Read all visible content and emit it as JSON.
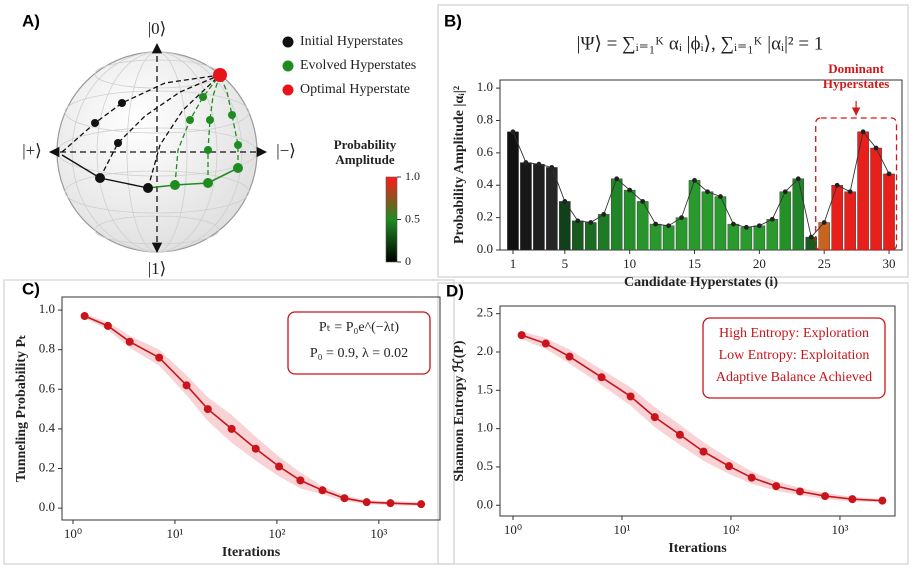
{
  "chart_data": [
    {
      "type": "bloch",
      "panel_label": "A)",
      "axis_labels": {
        "top": "|0⟩",
        "bottom": "|1⟩",
        "left": "|+⟩",
        "right": "|−⟩"
      },
      "series": [
        {
          "name": "Initial Hyperstates",
          "color": "#111111"
        },
        {
          "name": "Evolved Hyperstates",
          "color": "#1f8c22"
        },
        {
          "name": "Optimal Hyperstate",
          "color": "#e8141a"
        }
      ],
      "colorbar": {
        "label": "Probability Amplitude",
        "colors": [
          "#000000",
          "#1f8c22",
          "#ff1a1a"
        ],
        "lim": [
          0,
          1
        ],
        "ticks": [
          0,
          0.5,
          {
            "value": 1,
            "label": "1.0"
          }
        ]
      }
    },
    {
      "type": "bar",
      "panel_label": "B)",
      "equation": "|Ψ⟩ = ∑ᵢ₌₁ᴷ αᵢ |ϕᵢ⟩,     ∑ᵢ₌₁ᴷ |αᵢ|² = 1",
      "xlabel": "Candidate Hyperstates (i)",
      "ylabel": "Probability Amplitude |αᵢ|²",
      "x": [
        1,
        2,
        3,
        4,
        5,
        6,
        7,
        8,
        9,
        10,
        11,
        12,
        13,
        14,
        15,
        16,
        17,
        18,
        19,
        20,
        21,
        22,
        23,
        24,
        25,
        26,
        27,
        28,
        29,
        30
      ],
      "values": [
        0.73,
        0.54,
        0.53,
        0.51,
        0.3,
        0.18,
        0.17,
        0.22,
        0.44,
        0.37,
        0.3,
        0.16,
        0.15,
        0.2,
        0.43,
        0.36,
        0.33,
        0.16,
        0.14,
        0.15,
        0.19,
        0.36,
        0.44,
        0.08,
        0.17,
        0.4,
        0.36,
        0.73,
        0.63,
        0.47
      ],
      "colors": [
        "#111111",
        "#181818",
        "#1e1e1e",
        "#262626",
        "#12401a",
        "#185a1e",
        "#1c6b22",
        "#1f7a25",
        "#228428",
        "#258f2a",
        "#27952c",
        "#29992e",
        "#29992e",
        "#29992e",
        "#2a9a2e",
        "#2a9a2e",
        "#2a9a2e",
        "#2a9a2e",
        "#2a9a2e",
        "#2a9a2e",
        "#2a9a2e",
        "#269028",
        "#228428",
        "#1a5a1e",
        "#c8641e",
        "#e8201c",
        "#e8201c",
        "#e8201c",
        "#e8201c",
        "#e8201c"
      ],
      "highlight": [
        25,
        30
      ],
      "annotation": "Dominant Hyperstates",
      "annotation_color": "#d01818",
      "xlim": [
        0,
        31
      ],
      "ylim": [
        0,
        1.05
      ],
      "xticks": [
        1,
        5,
        10,
        15,
        20,
        25,
        30
      ],
      "yticks": [
        {
          "value": 0,
          "label": "0.0"
        },
        0.2,
        0.4,
        0.6,
        0.8,
        {
          "value": 1,
          "label": "1.0"
        }
      ]
    },
    {
      "type": "line",
      "panel_label": "C)",
      "xlabel": "Iterations",
      "ylabel": "Tunneling Probability Pₜ",
      "log_x": true,
      "color": "#c8141a",
      "band_color": "#f6c3c6",
      "x": [
        1.3,
        2.2,
        3.6,
        7,
        13,
        21,
        36,
        62,
        105,
        170,
        280,
        460,
        760,
        1300,
        2600
      ],
      "values": [
        0.97,
        0.92,
        0.84,
        0.76,
        0.62,
        0.5,
        0.4,
        0.3,
        0.21,
        0.14,
        0.09,
        0.05,
        0.03,
        0.025,
        0.02
      ],
      "error": [
        0.01,
        0.02,
        0.03,
        0.04,
        0.05,
        0.06,
        0.07,
        0.06,
        0.05,
        0.04,
        0.02,
        0.015,
        0.01,
        0.01,
        0.01
      ],
      "annotation": [
        "Pₜ = P₀e^(−λt)",
        "P₀ = 0.9,  λ = 0.02"
      ],
      "xlim": [
        0.78,
        3980
      ],
      "ylim": [
        -0.06,
        1.066
      ],
      "xticks": [
        {
          "value": 1,
          "label": "10⁰"
        },
        {
          "value": 10,
          "label": "10¹"
        },
        {
          "value": 100,
          "label": "10²"
        },
        {
          "value": 1000,
          "label": "10³"
        }
      ],
      "yticks": [
        {
          "value": 0,
          "label": "0.0"
        },
        0.2,
        0.4,
        0.6,
        0.8,
        {
          "value": 1,
          "label": "1.0"
        }
      ]
    },
    {
      "type": "line",
      "panel_label": "D)",
      "xlabel": "Iterations",
      "ylabel": "Shannon Entropy ℋ(P)",
      "log_x": true,
      "color": "#c8141a",
      "band_color": "#f6c3c6",
      "x": [
        1.2,
        2,
        3.3,
        6.5,
        12,
        20,
        34,
        56,
        96,
        155,
        260,
        430,
        730,
        1300,
        2450
      ],
      "values": [
        2.22,
        2.11,
        1.94,
        1.67,
        1.42,
        1.15,
        0.92,
        0.7,
        0.51,
        0.36,
        0.25,
        0.18,
        0.12,
        0.08,
        0.06
      ],
      "error": [
        0.05,
        0.07,
        0.09,
        0.1,
        0.12,
        0.13,
        0.13,
        0.12,
        0.1,
        0.08,
        0.06,
        0.05,
        0.04,
        0.03,
        0.02
      ],
      "annotation": [
        "High Entropy: Exploration",
        "Low Entropy: Exploitation",
        "Adaptive Balance Achieved"
      ],
      "xlim": [
        0.76,
        3200
      ],
      "ylim": [
        -0.14,
        2.6
      ],
      "xticks": [
        {
          "value": 1,
          "label": "10⁰"
        },
        {
          "value": 10,
          "label": "10¹"
        },
        {
          "value": 100,
          "label": "10²"
        },
        {
          "value": 1000,
          "label": "10³"
        }
      ],
      "yticks": [
        {
          "value": 0,
          "label": "0.0"
        },
        0.5,
        {
          "value": 1,
          "label": "1.0"
        },
        1.5,
        {
          "value": 2,
          "label": "2.0"
        },
        2.5
      ]
    }
  ]
}
